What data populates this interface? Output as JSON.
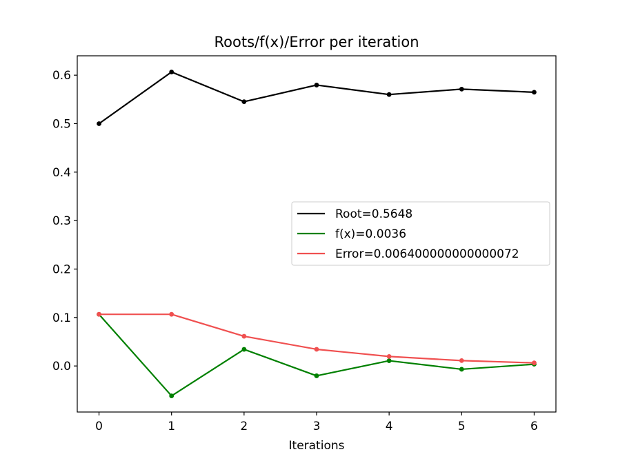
{
  "chart_data": {
    "type": "line",
    "title": "Roots/f(x)/Error per iteration",
    "xlabel": "Iterations",
    "ylabel": "",
    "x": [
      0,
      1,
      2,
      3,
      4,
      5,
      6
    ],
    "xlim": [
      -0.3,
      6.3
    ],
    "ylim": [
      -0.095,
      0.64
    ],
    "xticks": [
      0,
      1,
      2,
      3,
      4,
      5,
      6
    ],
    "yticks": [
      0.0,
      0.1,
      0.2,
      0.3,
      0.4,
      0.5,
      0.6
    ],
    "ytick_labels": [
      "0.0",
      "0.1",
      "0.2",
      "0.3",
      "0.4",
      "0.5",
      "0.6"
    ],
    "grid": false,
    "legend_position": "center-right",
    "series": [
      {
        "name": "Root=0.5648",
        "color": "#000000",
        "values": [
          0.5,
          0.6066,
          0.5453,
          0.5797,
          0.5601,
          0.5712,
          0.5648
        ]
      },
      {
        "name": "f(x)=0.0036",
        "color": "#008000",
        "values": [
          0.1065,
          -0.0617,
          0.0343,
          -0.0203,
          0.0108,
          -0.0068,
          0.0036
        ]
      },
      {
        "name": "Error=0.006400000000000072",
        "color": "#f05050",
        "values": [
          0.1066,
          0.1066,
          0.0613,
          0.0344,
          0.0196,
          0.0111,
          0.0064
        ]
      }
    ]
  }
}
